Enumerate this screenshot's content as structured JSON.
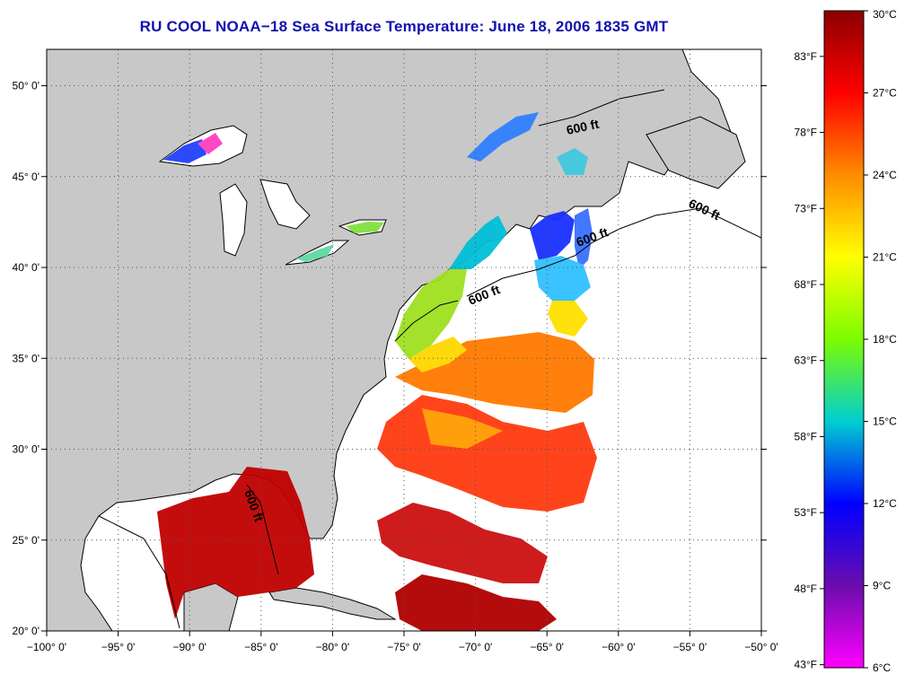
{
  "title": "RU COOL  NOAA−18  Sea Surface Temperature:  June 18, 2006 1835 GMT",
  "map": {
    "lon_range": [
      -100,
      -50
    ],
    "lat_range": [
      20,
      52
    ],
    "lon_ticks": [
      "−100° 0'",
      "−95° 0'",
      "−90° 0'",
      "−85° 0'",
      "−80° 0'",
      "−75° 0'",
      "−70° 0'",
      "−65° 0'",
      "−60° 0'",
      "−55° 0'",
      "−50° 0'"
    ],
    "lat_ticks": [
      "20° 0'",
      "25° 0'",
      "30° 0'",
      "35° 0'",
      "40° 0'",
      "45° 0'",
      "50° 0'"
    ],
    "contour_labels": [
      "600 ft",
      "600 ft",
      "600 ft",
      "600 ft",
      "600 ft"
    ],
    "colors": {
      "land": "#c8c8c8",
      "water": "#ffffff",
      "grid": "#555555"
    }
  },
  "colorbar": {
    "celsius_labels": [
      "30°C",
      "27°C",
      "24°C",
      "21°C",
      "18°C",
      "15°C",
      "12°C",
      "9°C",
      "6°C"
    ],
    "fahrenheit_labels": [
      "83°F",
      "78°F",
      "73°F",
      "68°F",
      "63°F",
      "58°F",
      "53°F",
      "48°F",
      "43°F"
    ],
    "gradient_stops": [
      "#8b0000",
      "#ff0000",
      "#ff8c00",
      "#ffff00",
      "#7cfc00",
      "#00ced1",
      "#0000ff",
      "#6a0dad",
      "#ff00ff"
    ]
  }
}
